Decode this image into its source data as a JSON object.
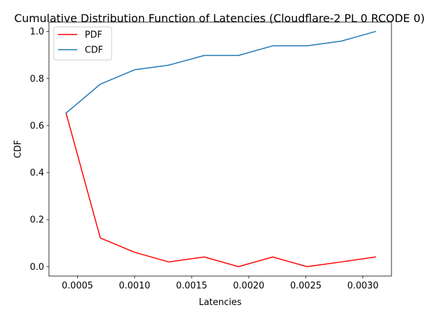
{
  "chart_data": {
    "type": "line",
    "title": "Cumulative Distribution Function of Latencies (Cloudflare-2 PL 0 RCODE 0)",
    "xlabel": "Latencies",
    "ylabel": "CDF",
    "xlim": [
      0.00025,
      0.00325
    ],
    "ylim": [
      -0.04,
      1.04
    ],
    "x_ticks": [
      0.0005,
      0.001,
      0.0015,
      0.002,
      0.0025,
      0.003
    ],
    "x_tick_labels": [
      "0.0005",
      "0.0010",
      "0.0015",
      "0.0020",
      "0.0025",
      "0.0030"
    ],
    "y_ticks": [
      0.0,
      0.2,
      0.4,
      0.6,
      0.8,
      1.0
    ],
    "y_tick_labels": [
      "0.0",
      "0.2",
      "0.4",
      "0.6",
      "0.8",
      "1.0"
    ],
    "grid": false,
    "legend_position": "top-left",
    "x": [
      0.0004,
      0.0007,
      0.001,
      0.0013,
      0.00161,
      0.00191,
      0.00221,
      0.00251,
      0.00281,
      0.00311
    ],
    "series": [
      {
        "name": "PDF",
        "color": "#ff0000",
        "values": [
          0.653,
          0.122,
          0.061,
          0.02,
          0.041,
          0.0,
          0.041,
          0.0,
          0.02,
          0.041
        ]
      },
      {
        "name": "CDF",
        "color": "#1f77b4",
        "values": [
          0.653,
          0.776,
          0.837,
          0.857,
          0.898,
          0.898,
          0.939,
          0.939,
          0.959,
          1.0
        ]
      }
    ]
  }
}
